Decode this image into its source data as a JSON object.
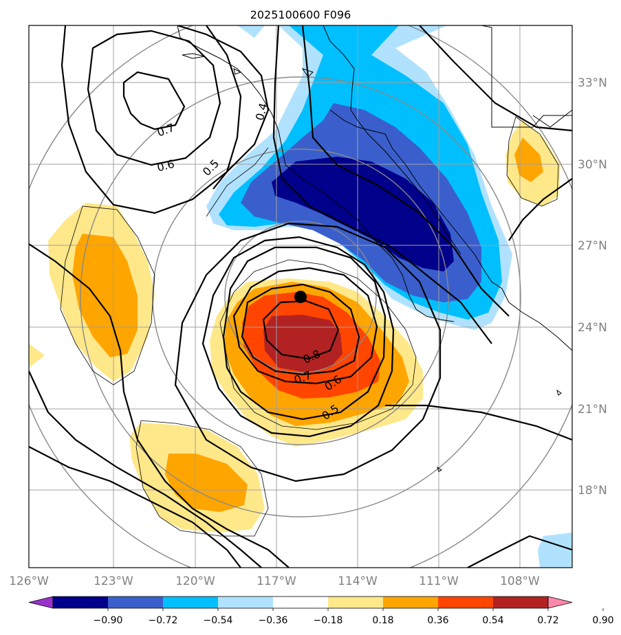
{
  "title": "2025100600 F096",
  "lon_labels": [
    "126°W",
    "123°W",
    "120°W",
    "117°W",
    "114°W",
    "111°W",
    "108°W"
  ],
  "lat_labels": [
    "33°N",
    "30°N",
    "27°N",
    "24°N",
    "21°N",
    "18°N"
  ],
  "contour_labels": [
    "0.7",
    "0.6",
    "0.5",
    "0.4",
    "0.8",
    "0.7",
    "0.6",
    "0.5"
  ],
  "colorbar": {
    "tick_labels": [
      "−0.90",
      "−0.72",
      "−0.54",
      "−0.36",
      "−0.18",
      "0.18",
      "0.36",
      "0.54",
      "0.72",
      "0.90"
    ],
    "colors": [
      "#9932cc",
      "#00008b",
      "#3a5fcd",
      "#00bfff",
      "#b0e2ff",
      "#ffffff",
      "#ffe88a",
      "#ffa500",
      "#ff4500",
      "#b22222",
      "#ff88aa"
    ]
  },
  "colors": {
    "grid": "#a0a0a0",
    "range_rings": "#888888",
    "axis_labels": "#808080",
    "contours": "#000000",
    "center_marker": "#000000"
  }
}
